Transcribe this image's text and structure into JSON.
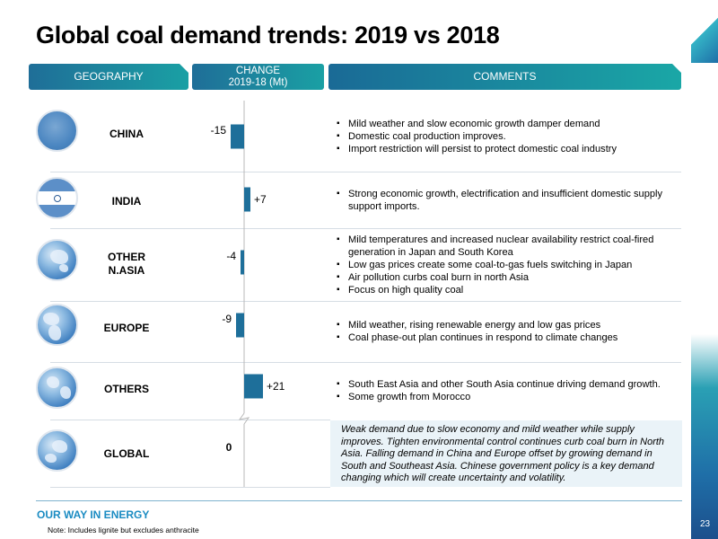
{
  "title": "Global coal demand trends: 2019 vs 2018",
  "headers": {
    "geography": "GEOGRAPHY",
    "change_line1": "CHANGE",
    "change_line2": "2019-18 (Mt)",
    "comments": "COMMENTS"
  },
  "regions": [
    {
      "name": "CHINA",
      "comments": [
        "Mild weather and slow economic growth damper demand",
        "Domestic coal production improves.",
        "Import restriction will persist to protect domestic coal industry"
      ]
    },
    {
      "name": "INDIA",
      "comments": [
        "Strong economic growth, electrification and insufficient domestic supply support imports."
      ]
    },
    {
      "name_line1": "OTHER",
      "name_line2": "N.ASIA",
      "comments": [
        "Mild temperatures and increased nuclear availability restrict coal-fired generation in Japan and South Korea",
        "Low gas prices create some coal-to-gas fuels switching in Japan",
        "Air pollution curbs coal burn in north Asia",
        "Focus on high quality coal"
      ]
    },
    {
      "name": "EUROPE",
      "comments": [
        "Mild weather, rising renewable energy and low gas prices",
        "Coal phase-out plan continues in respond to climate changes"
      ]
    },
    {
      "name": "OTHERS",
      "comments": [
        "South East Asia and other South Asia continue driving demand growth.",
        "Some growth from Morocco"
      ]
    },
    {
      "name": "GLOBAL",
      "comment": "Weak demand due to slow economy and mild weather while supply improves. Tighten environmental control continues curb coal burn in North Asia. Falling demand in China and Europe offset by growing demand in South and Southeast Asia. Chinese government policy is a key demand changing which will create uncertainty and volatility."
    }
  ],
  "chart_data": {
    "type": "bar",
    "orientation": "horizontal",
    "categories": [
      "CHINA",
      "INDIA",
      "OTHER N.ASIA",
      "EUROPE",
      "OTHERS",
      "GLOBAL"
    ],
    "values": [
      -15,
      7,
      -4,
      -9,
      21,
      0
    ],
    "value_labels": [
      "-15",
      "+7",
      "-4",
      "-9",
      "+21",
      "0"
    ],
    "unit": "Mt",
    "bar_color": "#1e6f9a",
    "axis_break_before": "GLOBAL"
  },
  "footer": {
    "brand": "OUR WAY IN ENERGY",
    "note": "Note: Includes lignite but excludes anthracite",
    "page": "23"
  },
  "colors": {
    "header_start": "#1f6e98",
    "header_end": "#1aa0a4",
    "brand": "#1a8bc2",
    "global_box": "#eaf3f8"
  }
}
